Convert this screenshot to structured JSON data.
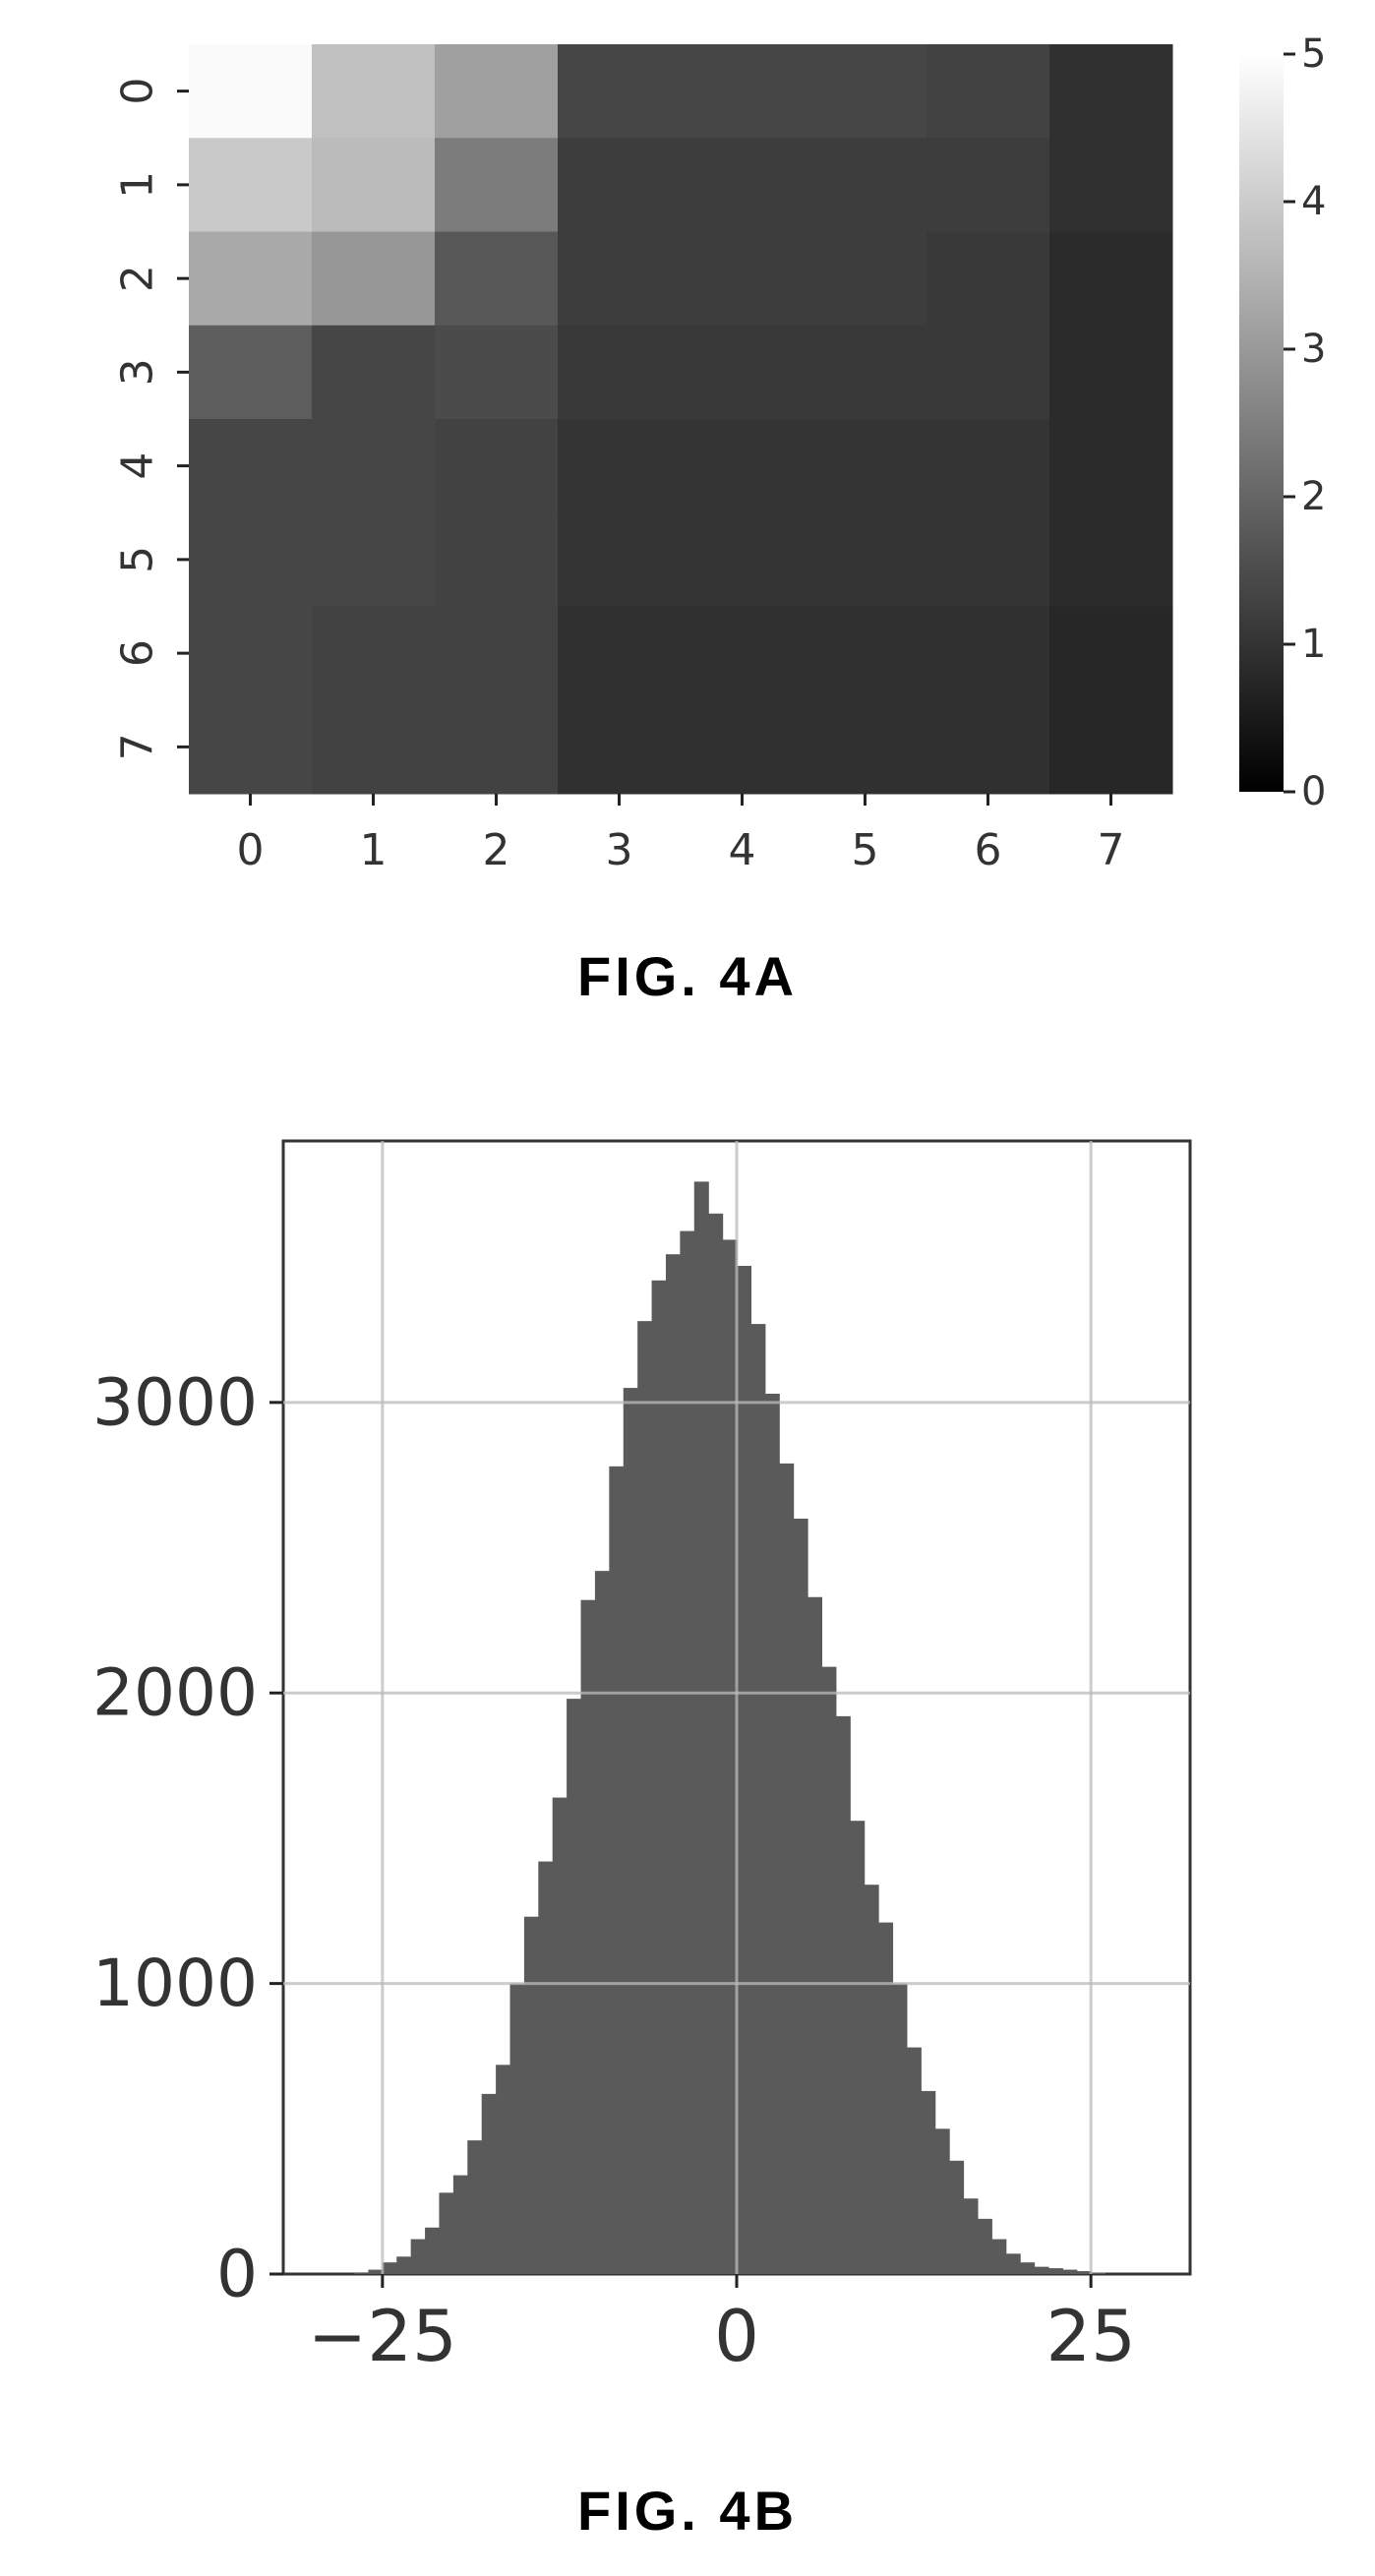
{
  "chart_data": [
    {
      "type": "heatmap",
      "caption": "FIG. 4A",
      "row_labels": [
        "0",
        "1",
        "2",
        "3",
        "4",
        "5",
        "6",
        "7"
      ],
      "col_labels": [
        "0",
        "1",
        "2",
        "3",
        "4",
        "5",
        "6",
        "7"
      ],
      "values": [
        [
          5.0,
          3.7,
          3.0,
          1.0,
          1.0,
          1.0,
          0.9,
          0.5
        ],
        [
          3.9,
          3.6,
          2.2,
          0.8,
          0.8,
          0.8,
          0.8,
          0.5
        ],
        [
          3.2,
          2.8,
          1.4,
          0.8,
          0.8,
          0.8,
          0.7,
          0.4
        ],
        [
          1.5,
          1.0,
          1.1,
          0.7,
          0.7,
          0.7,
          0.7,
          0.4
        ],
        [
          1.0,
          1.0,
          0.9,
          0.6,
          0.6,
          0.6,
          0.6,
          0.4
        ],
        [
          1.0,
          1.0,
          0.9,
          0.6,
          0.6,
          0.6,
          0.6,
          0.4
        ],
        [
          1.0,
          0.9,
          0.9,
          0.5,
          0.5,
          0.5,
          0.5,
          0.3
        ],
        [
          1.0,
          0.9,
          0.9,
          0.5,
          0.5,
          0.5,
          0.5,
          0.3
        ]
      ],
      "colorbar": {
        "min": 0,
        "max": 5,
        "ticks": [
          "0",
          "1",
          "2",
          "3",
          "4",
          "5"
        ],
        "colormap": "gray"
      }
    },
    {
      "type": "bar",
      "subtype": "histogram",
      "caption": "FIG. 4B",
      "bar_color": "#5a5a5a",
      "grid": true,
      "xlim": [
        -32,
        32
      ],
      "ylim": [
        0,
        3900
      ],
      "xticks": [
        "-25",
        "0",
        "25"
      ],
      "xtick_values": [
        -25,
        0,
        25
      ],
      "yticks": [
        "0",
        "1000",
        "2000",
        "3000"
      ],
      "ytick_values": [
        0,
        1000,
        2000,
        3000
      ],
      "bin_width": 1,
      "bin_start": -32,
      "counts": [
        0,
        0,
        0,
        0,
        0,
        3,
        15,
        40,
        60,
        120,
        160,
        280,
        340,
        460,
        620,
        720,
        1000,
        1230,
        1420,
        1640,
        1980,
        2320,
        2420,
        2780,
        3050,
        3280,
        3420,
        3510,
        3590,
        3760,
        3650,
        3560,
        3470,
        3270,
        3030,
        2790,
        2600,
        2330,
        2090,
        1920,
        1560,
        1340,
        1210,
        1000,
        780,
        630,
        500,
        390,
        260,
        190,
        120,
        70,
        40,
        25,
        20,
        15,
        10,
        5,
        0,
        0,
        0,
        0,
        0,
        0
      ]
    }
  ],
  "captions": {
    "fig_a": "FIG. 4A",
    "fig_b": "FIG. 4B"
  }
}
